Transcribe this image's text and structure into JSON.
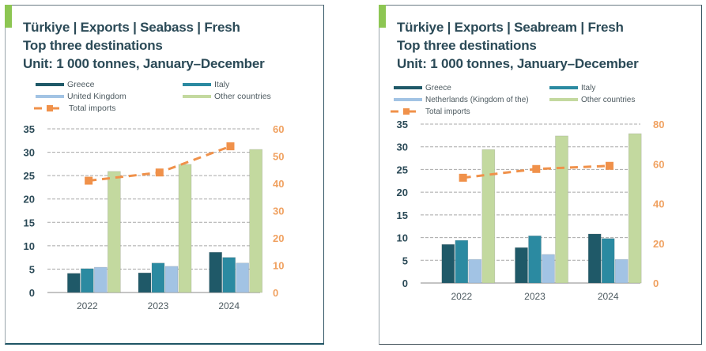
{
  "colors": {
    "greece": "#1f5968",
    "italy": "#2b8aa1",
    "third": "#a2c3e4",
    "other": "#c3d99f",
    "total": "#f0914a",
    "accent": "#8dc653",
    "title": "#2b4a57"
  },
  "chart_data": [
    {
      "type": "bar",
      "title": [
        "Türkiye | Exports | Seabass | Fresh",
        "Top three destinations",
        "Unit: 1 000 tonnes, January–December"
      ],
      "categories": [
        "2022",
        "2023",
        "2024"
      ],
      "series": [
        {
          "name": "Greece",
          "key": "greece",
          "values": [
            4.1,
            4.2,
            8.6
          ]
        },
        {
          "name": "Italy",
          "key": "italy",
          "values": [
            5.1,
            6.3,
            7.5
          ]
        },
        {
          "name": "United Kingdom",
          "key": "third",
          "values": [
            5.4,
            5.6,
            6.3
          ]
        },
        {
          "name": "Other countries",
          "key": "other",
          "values": [
            25.9,
            27.4,
            30.6
          ]
        }
      ],
      "line_series": {
        "name": "Total imports",
        "key": "total",
        "axis": "secondary",
        "values": [
          41,
          44,
          53.6
        ]
      },
      "ylim": [
        0,
        35
      ],
      "yticks": [
        "0",
        "5",
        "10",
        "15",
        "20",
        "25",
        "30",
        "35"
      ],
      "y2lim": [
        0,
        60
      ],
      "y2ticks": [
        "0",
        "10",
        "20",
        "30",
        "40",
        "50",
        "60"
      ],
      "grid": true,
      "legend": "top"
    },
    {
      "type": "bar",
      "title": [
        "Türkiye | Exports | Seabream | Fresh",
        "Top three destinations",
        "Unit: 1 000 tonnes, January–December"
      ],
      "categories": [
        "2022",
        "2023",
        "2024"
      ],
      "series": [
        {
          "name": "Greece",
          "key": "greece",
          "values": [
            8.5,
            7.8,
            10.8
          ]
        },
        {
          "name": "Italy",
          "key": "italy",
          "values": [
            9.4,
            10.4,
            9.8
          ]
        },
        {
          "name": "Netherlands (Kingdom of the)",
          "key": "third",
          "values": [
            5.2,
            6.3,
            5.2
          ]
        },
        {
          "name": "Other countries",
          "key": "other",
          "values": [
            29.4,
            32.4,
            32.9
          ]
        }
      ],
      "line_series": {
        "name": "Total imports",
        "key": "total",
        "axis": "secondary",
        "values": [
          53,
          57.4,
          59
        ]
      },
      "ylim": [
        0,
        35
      ],
      "yticks": [
        "0",
        "5",
        "10",
        "15",
        "20",
        "25",
        "30",
        "35"
      ],
      "y2lim": [
        0,
        80
      ],
      "y2ticks": [
        "0",
        "20",
        "40",
        "60",
        "80"
      ],
      "grid": true,
      "legend": "top"
    }
  ]
}
